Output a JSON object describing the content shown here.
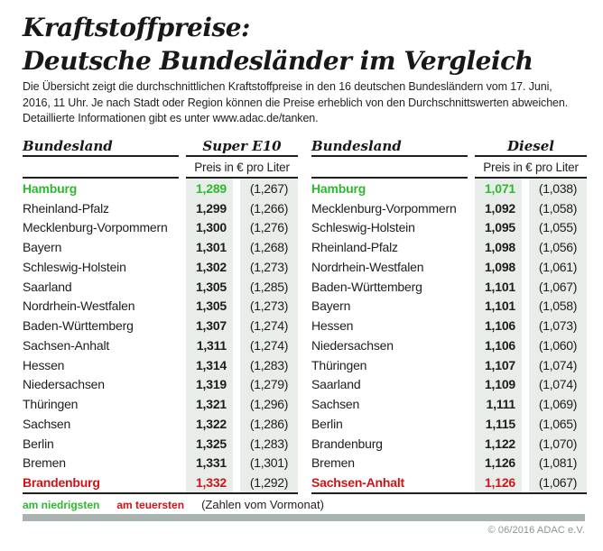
{
  "header": {
    "title_line1": "Kraftstoffpreise:",
    "title_line2": "Deutsche Bundesländer im Vergleich",
    "intro_lines": [
      "Die Übersicht zeigt die durchschnittlichen Kraftstoffpreise in den 16 deutschen Bundesländern vom 17. Juni,",
      "2016, 11 Uhr. Je nach Stadt oder Region können die Preise erheblich von den Durchschnittswerten abweichen.",
      "Detaillierte Informationen gibt es unter www.adac.de/tanken."
    ]
  },
  "tables": [
    {
      "col_bundesland": "Bundesland",
      "fuel": "Super E10",
      "price_header": "Preis in € pro Liter",
      "rows": [
        {
          "land": "Hamburg",
          "price": "1,289",
          "prev": "(1,267)",
          "highlight": "lowest"
        },
        {
          "land": "Rheinland-Pfalz",
          "price": "1,299",
          "prev": "(1,266)"
        },
        {
          "land": "Mecklenburg-Vorpommern",
          "price": "1,300",
          "prev": "(1,276)"
        },
        {
          "land": "Bayern",
          "price": "1,301",
          "prev": "(1,268)"
        },
        {
          "land": "Schleswig-Holstein",
          "price": "1,302",
          "prev": "(1,273)"
        },
        {
          "land": "Saarland",
          "price": "1,305",
          "prev": "(1,285)"
        },
        {
          "land": "Nordrhein-Westfalen",
          "price": "1,305",
          "prev": "(1,273)"
        },
        {
          "land": "Baden-Württemberg",
          "price": "1,307",
          "prev": "(1,274)"
        },
        {
          "land": "Sachsen-Anhalt",
          "price": "1,311",
          "prev": "(1,274)"
        },
        {
          "land": "Hessen",
          "price": "1,314",
          "prev": "(1,283)"
        },
        {
          "land": "Niedersachsen",
          "price": "1,319",
          "prev": "(1,279)"
        },
        {
          "land": "Thüringen",
          "price": "1,321",
          "prev": "(1,296)"
        },
        {
          "land": "Sachsen",
          "price": "1,322",
          "prev": "(1,286)"
        },
        {
          "land": "Berlin",
          "price": "1,325",
          "prev": "(1,283)"
        },
        {
          "land": "Bremen",
          "price": "1,331",
          "prev": "(1,301)"
        },
        {
          "land": "Brandenburg",
          "price": "1,332",
          "prev": "(1,292)",
          "highlight": "highest"
        }
      ]
    },
    {
      "col_bundesland": "Bundesland",
      "fuel": "Diesel",
      "price_header": "Preis in € pro Liter",
      "rows": [
        {
          "land": "Hamburg",
          "price": "1,071",
          "prev": "(1,038)",
          "highlight": "lowest"
        },
        {
          "land": "Mecklenburg-Vorpommern",
          "price": "1,092",
          "prev": "(1,058)"
        },
        {
          "land": "Schleswig-Holstein",
          "price": "1,095",
          "prev": "(1,055)"
        },
        {
          "land": "Rheinland-Pfalz",
          "price": "1,098",
          "prev": "(1,056)"
        },
        {
          "land": "Nordrhein-Westfalen",
          "price": "1,098",
          "prev": "(1,061)"
        },
        {
          "land": "Baden-Württemberg",
          "price": "1,101",
          "prev": "(1,067)"
        },
        {
          "land": "Bayern",
          "price": "1,101",
          "prev": "(1,058)"
        },
        {
          "land": "Hessen",
          "price": "1,106",
          "prev": "(1,073)"
        },
        {
          "land": "Niedersachsen",
          "price": "1,106",
          "prev": "(1,060)"
        },
        {
          "land": "Thüringen",
          "price": "1,107",
          "prev": "(1,074)"
        },
        {
          "land": "Saarland",
          "price": "1,109",
          "prev": "(1,074)"
        },
        {
          "land": "Sachsen",
          "price": "1,111",
          "prev": "(1,069)"
        },
        {
          "land": "Berlin",
          "price": "1,115",
          "prev": "(1,065)"
        },
        {
          "land": "Brandenburg",
          "price": "1,122",
          "prev": "(1,070)"
        },
        {
          "land": "Bremen",
          "price": "1,126",
          "prev": "(1,081)"
        },
        {
          "land": "Sachsen-Anhalt",
          "price": "1,126",
          "prev": "(1,067)",
          "highlight": "highest"
        }
      ]
    }
  ],
  "legend": {
    "lowest_label": "am niedrigsten",
    "highest_label": "am teuersten",
    "note": "(Zahlen vom Vormonat)"
  },
  "footer": {
    "copyright": "© 06/2016 ADAC e.V."
  },
  "colors": {
    "lowest_green": "#2db92d",
    "highest_red": "#cd1419",
    "cell_background": "#e9edea",
    "footer_bar": "#a9b3af"
  },
  "chart_data": [
    {
      "type": "table",
      "title": "Super E10",
      "subtitle": "Preis in € pro Liter",
      "columns": [
        "Bundesland",
        "Preis in € pro Liter",
        "Vormonat"
      ],
      "rows": [
        [
          "Hamburg",
          1.289,
          1.267
        ],
        [
          "Rheinland-Pfalz",
          1.299,
          1.266
        ],
        [
          "Mecklenburg-Vorpommern",
          1.3,
          1.276
        ],
        [
          "Bayern",
          1.301,
          1.268
        ],
        [
          "Schleswig-Holstein",
          1.302,
          1.273
        ],
        [
          "Saarland",
          1.305,
          1.285
        ],
        [
          "Nordrhein-Westfalen",
          1.305,
          1.273
        ],
        [
          "Baden-Württemberg",
          1.307,
          1.274
        ],
        [
          "Sachsen-Anhalt",
          1.311,
          1.274
        ],
        [
          "Hessen",
          1.314,
          1.283
        ],
        [
          "Niedersachsen",
          1.319,
          1.279
        ],
        [
          "Thüringen",
          1.321,
          1.296
        ],
        [
          "Sachsen",
          1.322,
          1.286
        ],
        [
          "Berlin",
          1.325,
          1.283
        ],
        [
          "Bremen",
          1.331,
          1.301
        ],
        [
          "Brandenburg",
          1.332,
          1.292
        ]
      ],
      "highlights": {
        "lowest": "Hamburg",
        "highest": "Brandenburg"
      }
    },
    {
      "type": "table",
      "title": "Diesel",
      "subtitle": "Preis in € pro Liter",
      "columns": [
        "Bundesland",
        "Preis in € pro Liter",
        "Vormonat"
      ],
      "rows": [
        [
          "Hamburg",
          1.071,
          1.038
        ],
        [
          "Mecklenburg-Vorpommern",
          1.092,
          1.058
        ],
        [
          "Schleswig-Holstein",
          1.095,
          1.055
        ],
        [
          "Rheinland-Pfalz",
          1.098,
          1.056
        ],
        [
          "Nordrhein-Westfalen",
          1.098,
          1.061
        ],
        [
          "Baden-Württemberg",
          1.101,
          1.067
        ],
        [
          "Bayern",
          1.101,
          1.058
        ],
        [
          "Hessen",
          1.106,
          1.073
        ],
        [
          "Niedersachsen",
          1.106,
          1.06
        ],
        [
          "Thüringen",
          1.107,
          1.074
        ],
        [
          "Saarland",
          1.109,
          1.074
        ],
        [
          "Sachsen",
          1.111,
          1.069
        ],
        [
          "Berlin",
          1.115,
          1.065
        ],
        [
          "Brandenburg",
          1.122,
          1.07
        ],
        [
          "Bremen",
          1.126,
          1.081
        ],
        [
          "Sachsen-Anhalt",
          1.126,
          1.067
        ]
      ],
      "highlights": {
        "lowest": "Hamburg",
        "highest": "Sachsen-Anhalt"
      }
    }
  ]
}
